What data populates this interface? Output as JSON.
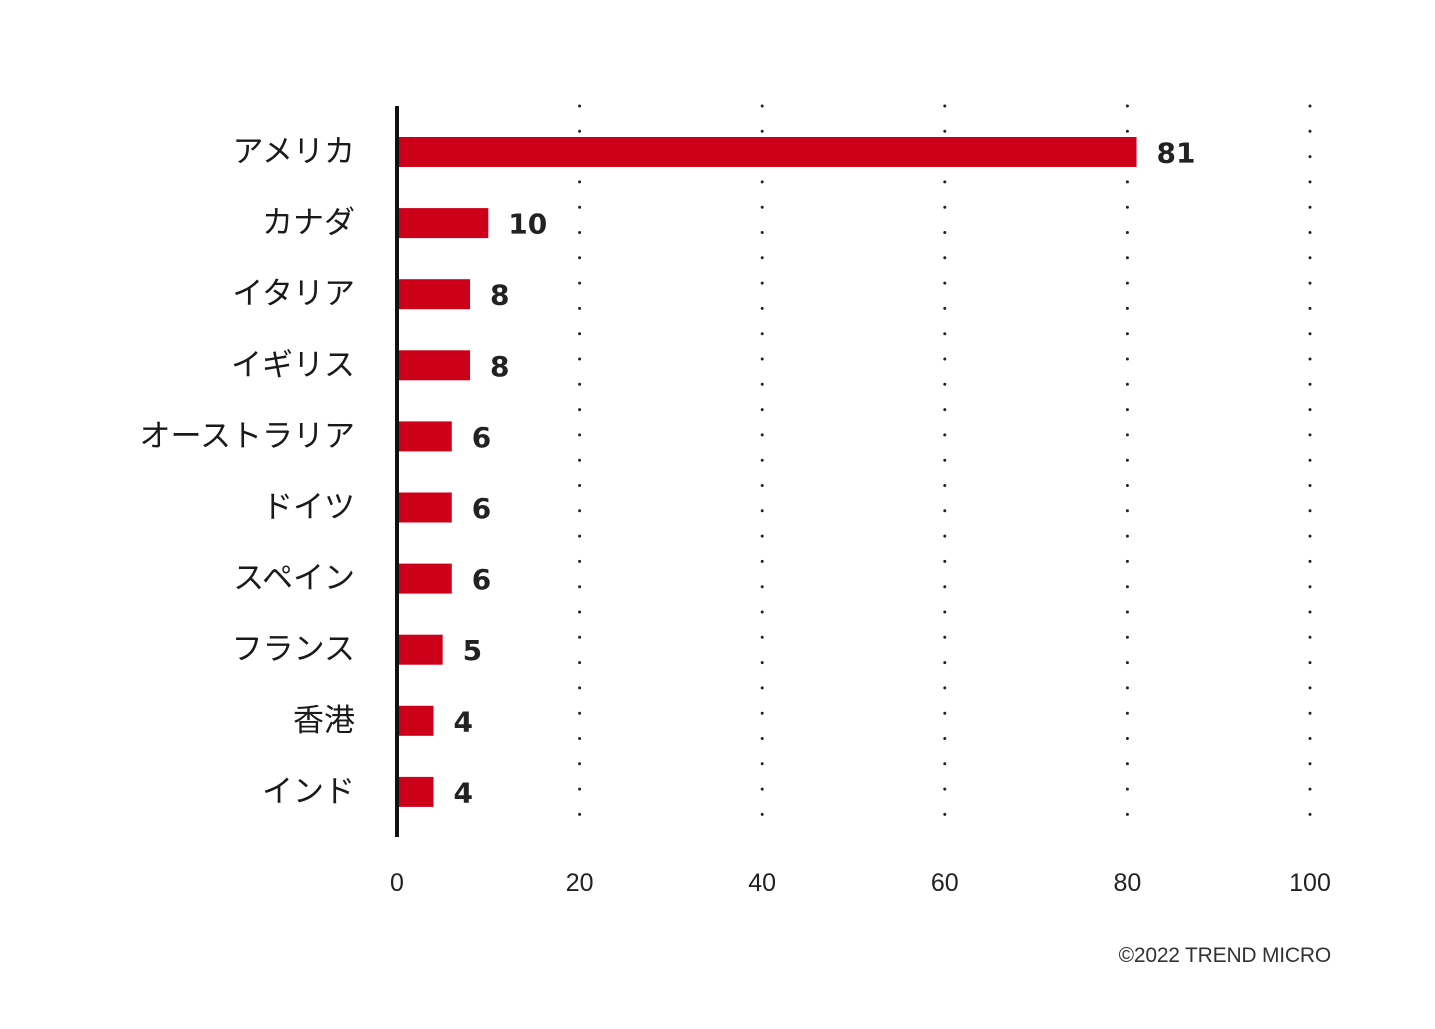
{
  "chart_data": {
    "type": "bar",
    "orientation": "horizontal",
    "categories": [
      "アメリカ",
      "カナダ",
      "イタリア",
      "イギリス",
      "オーストラリア",
      "ドイツ",
      "スペイン",
      "フランス",
      "香港",
      "インド"
    ],
    "values": [
      81,
      10,
      8,
      8,
      6,
      6,
      6,
      5,
      4,
      4
    ],
    "data_labels": [
      "81",
      "10",
      "8",
      "8",
      "6",
      "6",
      "6",
      "5",
      "4",
      "4"
    ],
    "title": "",
    "xlabel": "",
    "ylabel": "",
    "xlim": [
      0,
      100
    ],
    "x_ticks": [
      0,
      20,
      40,
      60,
      80,
      100
    ],
    "x_tick_labels": [
      "0",
      "20",
      "40",
      "60",
      "80",
      "100"
    ],
    "grid": "vertical-dotted",
    "legend": "none",
    "bar_color": "#cc0019",
    "axis_color": "#111111"
  },
  "footer": {
    "copyright": "©2022 TREND MICRO"
  }
}
